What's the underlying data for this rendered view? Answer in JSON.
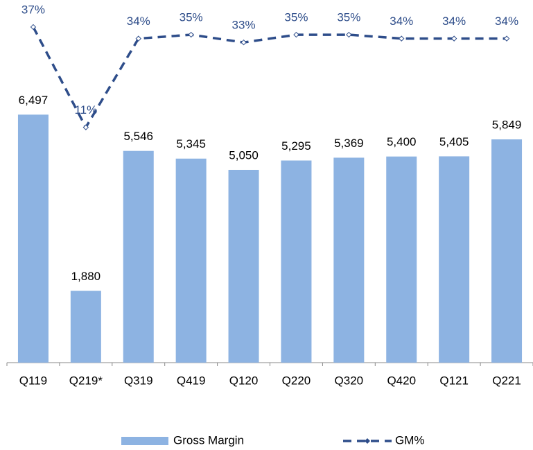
{
  "chart_data": {
    "type": "bar",
    "categories": [
      "Q119",
      "Q219*",
      "Q319",
      "Q419",
      "Q120",
      "Q220",
      "Q320",
      "Q420",
      "Q121",
      "Q221"
    ],
    "series": [
      {
        "name": "Gross Margin",
        "type": "bar",
        "color": "#8db3e2",
        "values": [
          6497,
          1880,
          5546,
          5345,
          5050,
          5295,
          5369,
          5400,
          5405,
          5849
        ],
        "value_labels": [
          "6,497",
          "1,880",
          "5,546",
          "5,345",
          "5,050",
          "5,295",
          "5,369",
          "5,400",
          "5,405",
          "5,849"
        ]
      },
      {
        "name": "GM%",
        "type": "line",
        "axis": "y2",
        "color": "#2e4d8a",
        "values": [
          37,
          11,
          34,
          35,
          33,
          35,
          35,
          34,
          34,
          34
        ],
        "value_labels": [
          "37%",
          "11%",
          "34%",
          "35%",
          "33%",
          "35%",
          "35%",
          "34%",
          "34%",
          "34%"
        ]
      }
    ],
    "ylim": [
      0,
      9500
    ],
    "y2lim": [
      -50,
      44
    ],
    "legend": "bottom"
  }
}
